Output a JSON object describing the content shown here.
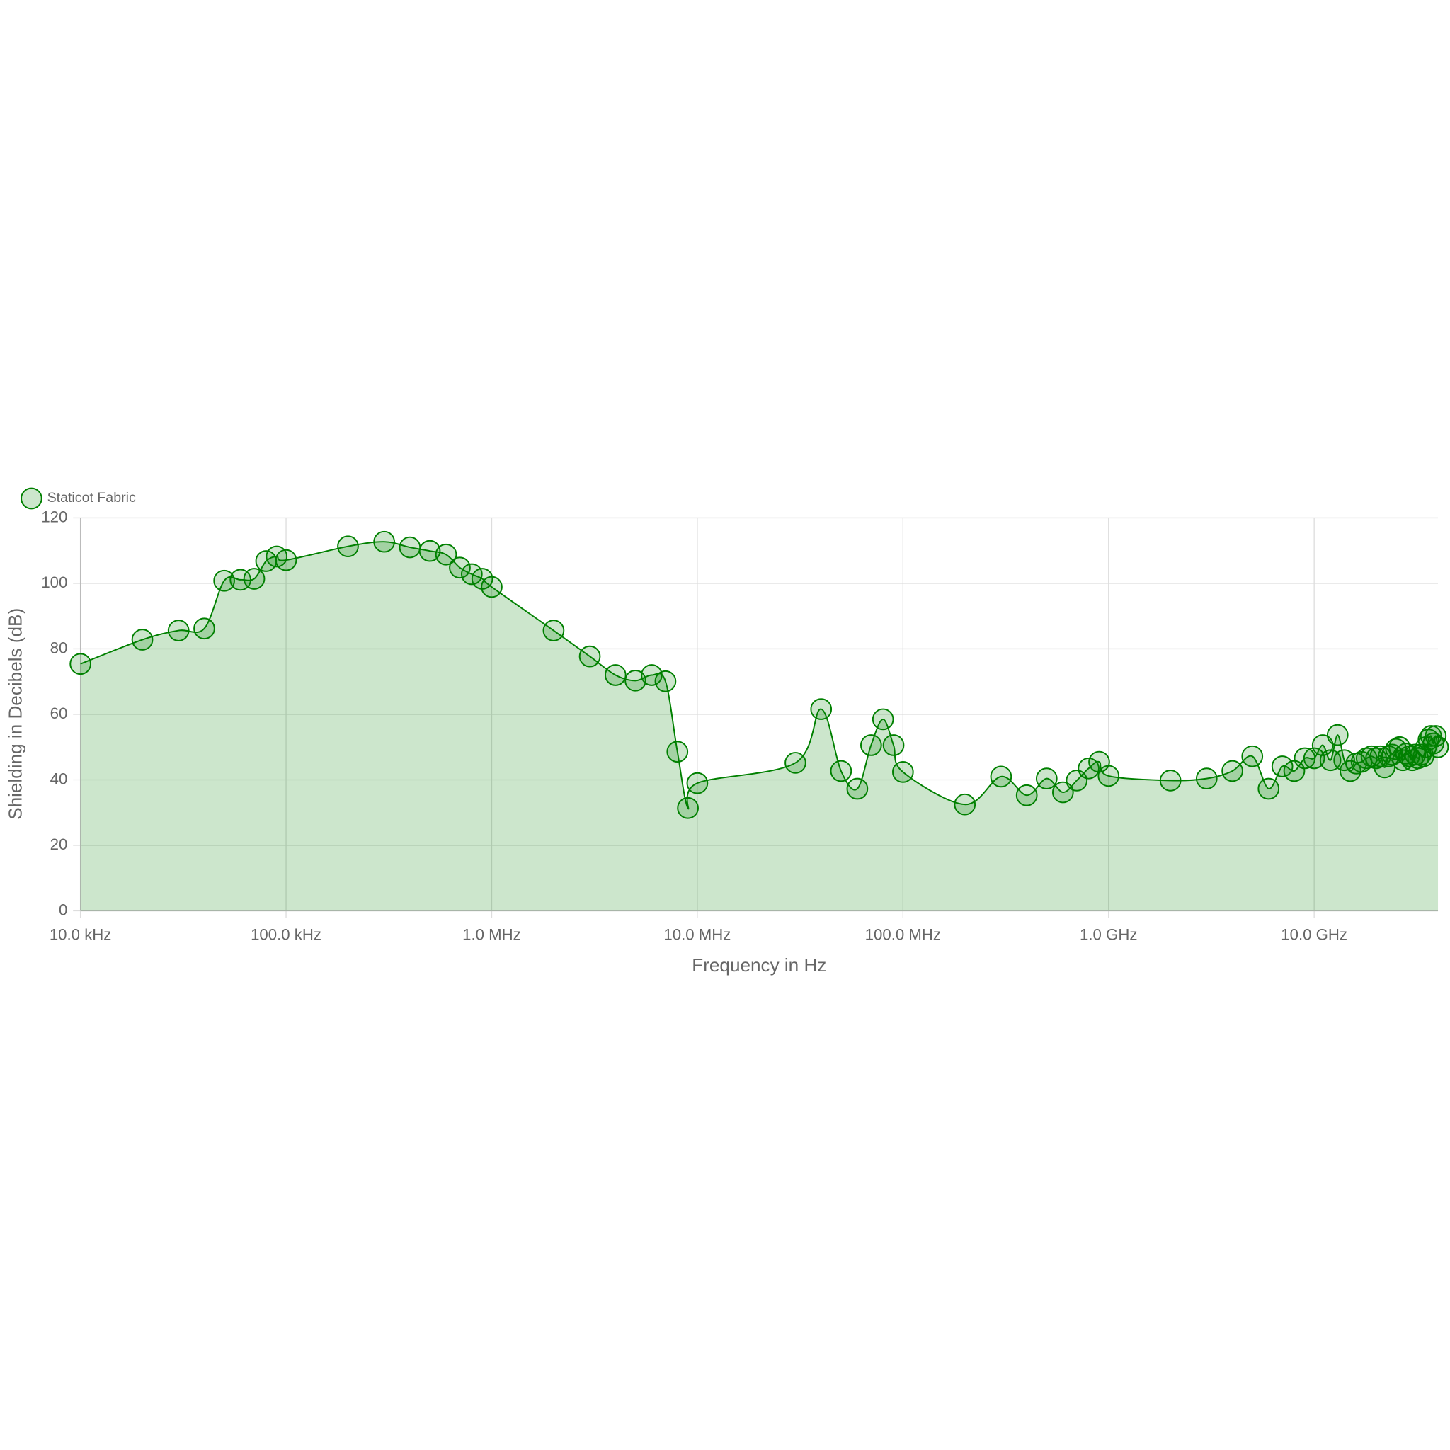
{
  "chart_data": {
    "type": "area",
    "x_label": "Frequency in Hz",
    "y_label": "Shielding in Decibels (dB)",
    "xscale": "log",
    "grid": true,
    "legend": "top-left",
    "xlim": [
      10000,
      40000000000
    ],
    "ylim": [
      0,
      120
    ],
    "xticks": [
      {
        "value": 10000,
        "label": "10.0 kHz"
      },
      {
        "value": 100000,
        "label": "100.0 kHz"
      },
      {
        "value": 1000000,
        "label": "1.0 MHz"
      },
      {
        "value": 10000000,
        "label": "10.0 MHz"
      },
      {
        "value": 100000000,
        "label": "100.0 MHz"
      },
      {
        "value": 1000000000,
        "label": "1.0 GHz"
      },
      {
        "value": 10000000000,
        "label": "10.0 GHz"
      }
    ],
    "yticks": [
      0,
      20,
      40,
      60,
      80,
      100,
      120
    ],
    "x": [
      10000,
      20000,
      30000,
      40000,
      50000,
      60000,
      70000,
      80000,
      90000,
      100000,
      200000,
      300000,
      400000,
      500000,
      600000,
      700000,
      800000,
      900000,
      1000000,
      2000000,
      3000000,
      4000000,
      5000000,
      6000000,
      7000000,
      8000000,
      9000000,
      10000000,
      30000000,
      40000000,
      50000000,
      60000000,
      70000000,
      80000000,
      90000000,
      100000000,
      200000000,
      300000000,
      400000000,
      500000000,
      600000000,
      700000000,
      800000000,
      900000000,
      1000000000,
      2000000000,
      3000000000,
      4000000000,
      5000000000,
      6000000000,
      7000000000,
      8000000000,
      9000000000,
      10000000000,
      11000000000,
      12000000000,
      13000000000,
      14000000000,
      15000000000,
      16000000000,
      17000000000,
      18000000000,
      19000000000,
      20000000000,
      21000000000,
      22000000000,
      23000000000,
      24000000000,
      25000000000,
      26000000000,
      27000000000,
      28000000000,
      29000000000,
      30000000000,
      31000000000,
      32000000000,
      33000000000,
      34000000000,
      35000000000,
      36000000000,
      37000000000,
      38000000000,
      39000000000,
      40000000000
    ],
    "series": [
      {
        "name": "Staticot Fabric",
        "color": "#008000",
        "values": [
          75.4,
          82.8,
          85.6,
          86.2,
          100.8,
          101.1,
          101.4,
          106.8,
          108.2,
          107.1,
          111.3,
          112.7,
          111,
          109.9,
          108.8,
          104.8,
          102.8,
          101.4,
          98.9,
          85.6,
          77.7,
          72,
          70.3,
          72,
          70.1,
          48.6,
          31.4,
          39,
          45.2,
          61.6,
          42.7,
          37.3,
          50.6,
          58.5,
          50.6,
          42.4,
          32.5,
          41,
          35.3,
          40.4,
          36.2,
          39.8,
          43.5,
          45.5,
          41.2,
          39.8,
          40.4,
          42.7,
          47.2,
          37.3,
          44.1,
          42.7,
          46.6,
          46.6,
          50.6,
          46,
          53.7,
          46,
          42.7,
          45,
          45.5,
          46.6,
          47.2,
          46.6,
          47.2,
          43.8,
          47.2,
          47.7,
          49.4,
          50,
          46,
          48,
          47.2,
          46,
          47.7,
          46.6,
          47.7,
          47.2,
          50,
          52.3,
          53.4,
          51.1,
          53.4,
          50
        ]
      }
    ]
  }
}
